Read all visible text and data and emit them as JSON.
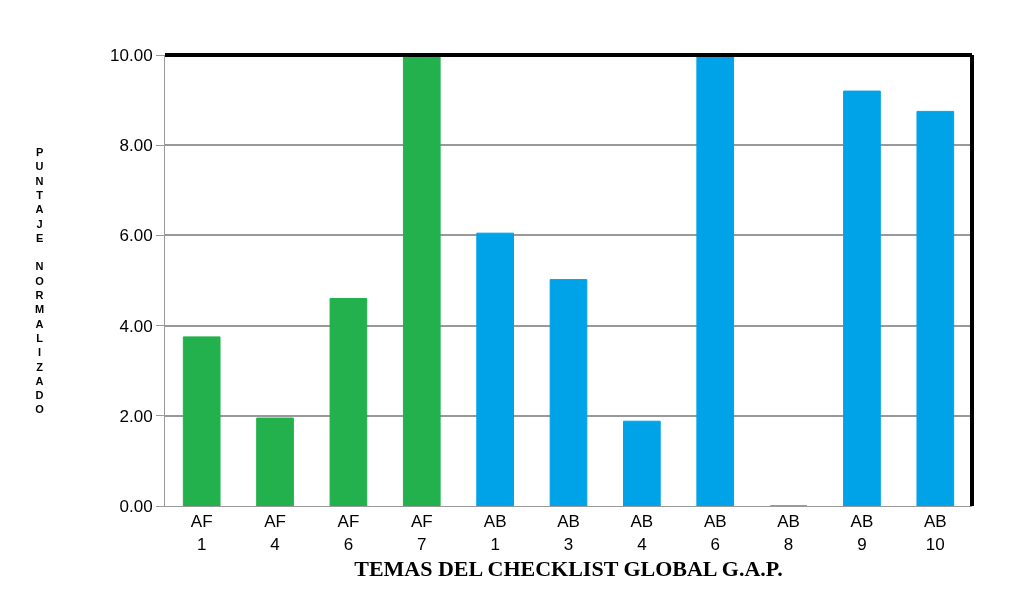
{
  "chart_data": {
    "type": "bar",
    "xlabel": "TEMAS DEL CHECKLIST GLOBAL G.A.P.",
    "ylabel": "PUNTAJE NORMALIZADO",
    "categories": [
      "AF 1",
      "AF 4",
      "AF 6",
      "AF 7",
      "AB 1",
      "AB 3",
      "AB 4",
      "AB 6",
      "AB 8",
      "AB 9",
      "AB 10"
    ],
    "values": [
      3.75,
      1.95,
      4.6,
      10,
      6.05,
      5.02,
      1.88,
      10,
      0,
      9.2,
      8.75
    ],
    "colors": [
      "#22b14c",
      "#22b14c",
      "#22b14c",
      "#22b14c",
      "#00a2e8",
      "#00a2e8",
      "#00a2e8",
      "#00a2e8",
      "#00a2e8",
      "#00a2e8",
      "#00a2e8"
    ],
    "ylim": [
      0,
      10
    ],
    "yticks": [
      {
        "value": 0,
        "label": "0.00"
      },
      {
        "value": 2,
        "label": "2.00"
      },
      {
        "value": 4,
        "label": "4.00"
      },
      {
        "value": 6,
        "label": "6.00"
      },
      {
        "value": 8,
        "label": "8.00"
      },
      {
        "value": 10,
        "label": "10.00"
      }
    ],
    "grid": "y"
  }
}
